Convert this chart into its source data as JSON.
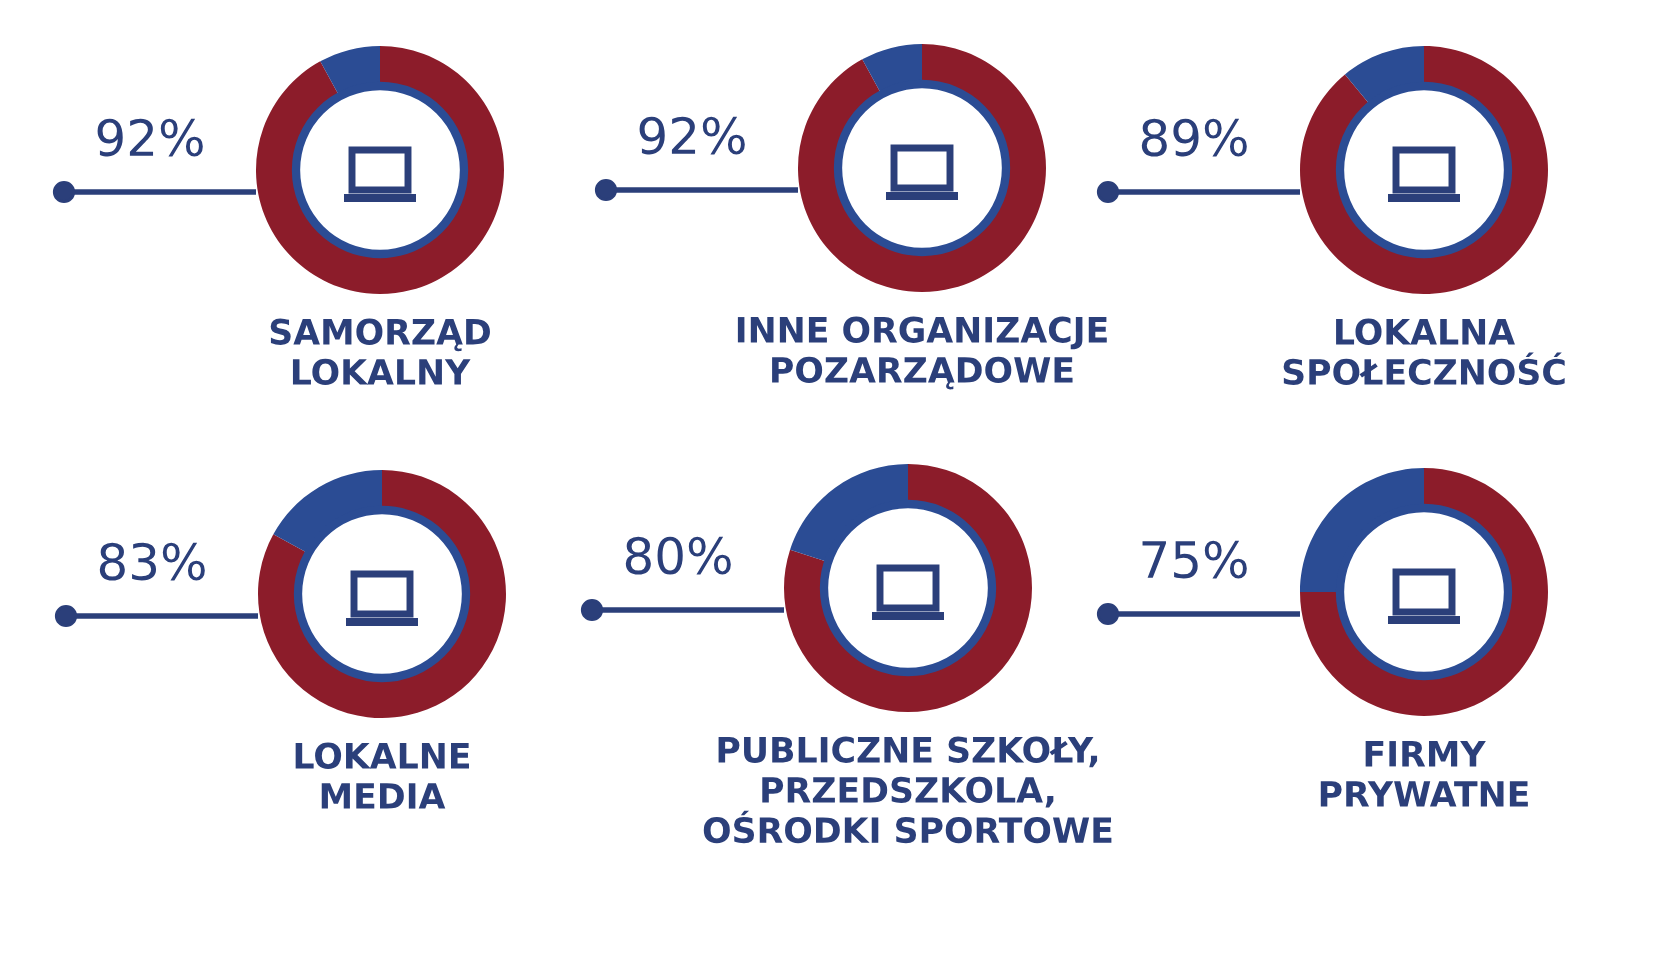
{
  "chart_data": [
    {
      "type": "donut",
      "title": "SAMORZĄD\nLOKALNY",
      "categories": [
        null,
        null
      ],
      "values": [
        92,
        8
      ],
      "colors": [
        "#8c1c2a",
        "#2b4c94"
      ],
      "value_labels": [
        "92%",
        null
      ]
    },
    {
      "type": "donut",
      "title": "INNE ORGANIZACJE\nPOZARZĄDOWE",
      "categories": [
        null,
        null
      ],
      "values": [
        92,
        8
      ],
      "colors": [
        "#8c1c2a",
        "#2b4c94"
      ],
      "value_labels": [
        "92%",
        null
      ]
    },
    {
      "type": "donut",
      "title": "LOKALNA\nSPOŁECZNOŚĆ",
      "categories": [
        null,
        null
      ],
      "values": [
        89,
        11
      ],
      "colors": [
        "#8c1c2a",
        "#2b4c94"
      ],
      "value_labels": [
        "89%",
        null
      ]
    },
    {
      "type": "donut",
      "title": "LOKALNE\nMEDIA",
      "categories": [
        null,
        null
      ],
      "values": [
        83,
        17
      ],
      "colors": [
        "#8c1c2a",
        "#2b4c94"
      ],
      "value_labels": [
        "83%",
        null
      ]
    },
    {
      "type": "donut",
      "title": "PUBLICZNE SZKOŁY,\nPRZEDSZKOLA,\nOŚRODKI SPORTOWE",
      "categories": [
        null,
        null
      ],
      "values": [
        80,
        20
      ],
      "colors": [
        "#8c1c2a",
        "#2b4c94"
      ],
      "value_labels": [
        "80%",
        null
      ]
    },
    {
      "type": "donut",
      "title": "FIRMY\nPRYWATNE",
      "categories": [
        null,
        null
      ],
      "values": [
        75,
        25
      ],
      "colors": [
        "#8c1c2a",
        "#2b4c94"
      ],
      "value_labels": [
        "75%",
        null
      ]
    }
  ]
}
